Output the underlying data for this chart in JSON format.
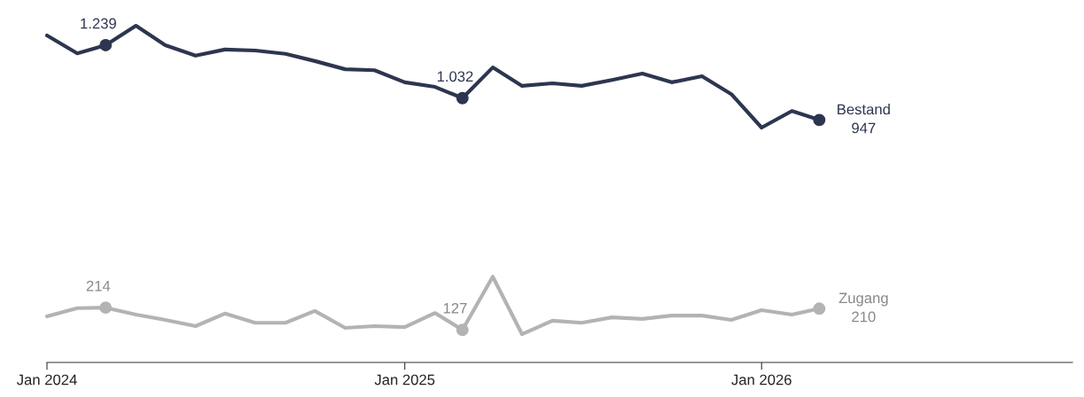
{
  "chart_data": {
    "type": "line",
    "x": [
      "2024-01",
      "2024-02",
      "2024-03",
      "2024-04",
      "2024-05",
      "2024-06",
      "2024-07",
      "2024-08",
      "2024-09",
      "2024-10",
      "2024-11",
      "2024-12",
      "2025-01",
      "2025-02",
      "2025-03",
      "2025-04",
      "2025-05",
      "2025-06",
      "2025-07",
      "2025-08",
      "2025-09",
      "2025-10",
      "2025-11",
      "2025-12",
      "2026-01",
      "2026-02",
      "2026-03"
    ],
    "xlim": [
      "2024-01",
      "2026-11-15"
    ],
    "xticks": [
      {
        "value": "2024-01",
        "label": "Jan 2024"
      },
      {
        "value": "2025-01",
        "label": "Jan 2025"
      },
      {
        "value": "2026-01",
        "label": "Jan 2026"
      }
    ],
    "series": [
      {
        "name": "Bestand",
        "color": "#2d3650",
        "values": [
          1277,
          1207,
          1239,
          1315,
          1239,
          1198,
          1222,
          1218,
          1205,
          1177,
          1145,
          1141,
          1094,
          1076,
          1032,
          1152,
          1080,
          1090,
          1080,
          1103,
          1128,
          1094,
          1118,
          1048,
          917,
          982,
          947
        ],
        "value_labels": [
          null,
          null,
          "1.239",
          null,
          null,
          null,
          null,
          null,
          null,
          null,
          null,
          null,
          null,
          null,
          "1.032",
          null,
          null,
          null,
          null,
          null,
          null,
          null,
          null,
          null,
          null,
          null,
          "947"
        ]
      },
      {
        "name": "Zugang",
        "color": "#b3b3b3",
        "values": [
          180,
          212,
          214,
          187,
          166,
          142,
          191,
          155,
          155,
          201,
          135,
          142,
          138,
          193,
          127,
          335,
          110,
          163,
          155,
          176,
          170,
          183,
          183,
          166,
          204,
          187,
          210
        ],
        "value_labels": [
          null,
          null,
          "214",
          null,
          null,
          null,
          null,
          null,
          null,
          null,
          null,
          null,
          null,
          null,
          "127",
          null,
          null,
          null,
          null,
          null,
          null,
          null,
          null,
          null,
          null,
          null,
          "210"
        ]
      }
    ],
    "grid": false,
    "legend": false
  }
}
